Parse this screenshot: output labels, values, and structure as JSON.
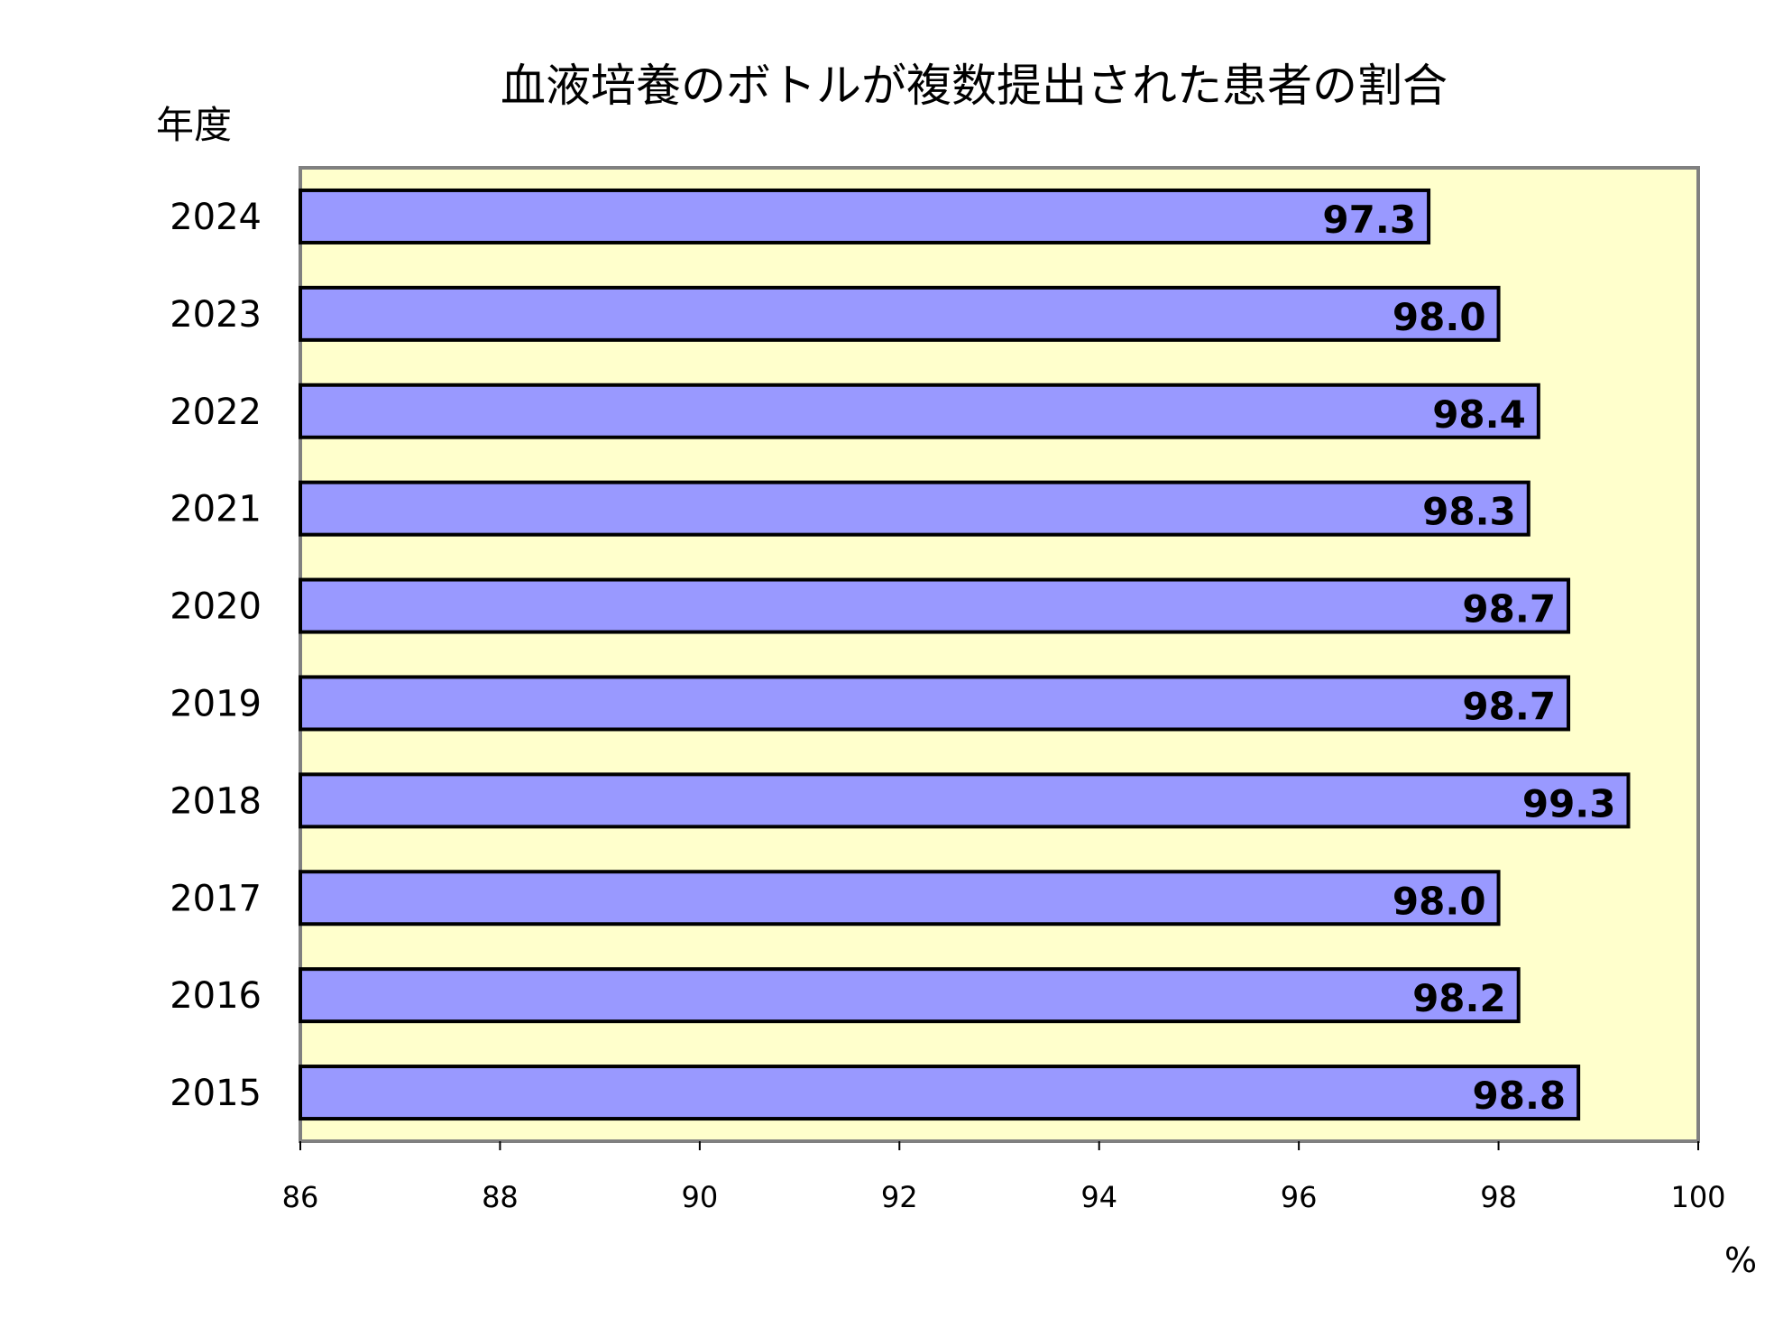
{
  "chart_data": {
    "type": "bar",
    "orientation": "horizontal",
    "title": "血液培養のボトルが複数提出された患者の割合",
    "ylabel": "年度",
    "xlabel": "%",
    "categories": [
      "2024",
      "2023",
      "2022",
      "2021",
      "2020",
      "2019",
      "2018",
      "2017",
      "2016",
      "2015"
    ],
    "values": [
      97.3,
      98.0,
      98.4,
      98.3,
      98.7,
      98.7,
      99.3,
      98.0,
      98.2,
      98.8
    ],
    "data_labels": [
      "97.3",
      "98.0",
      "98.4",
      "98.3",
      "98.7",
      "98.7",
      "99.3",
      "98.0",
      "98.2",
      "98.8"
    ],
    "xlim": [
      86,
      100
    ],
    "xticks": [
      86,
      88,
      90,
      92,
      94,
      96,
      98,
      100
    ],
    "xtick_labels": [
      "86",
      "88",
      "90",
      "92",
      "94",
      "96",
      "98",
      "100"
    ],
    "grid": false,
    "legend": "none",
    "colors": {
      "bar": "#9999FF",
      "plot_background": "#FFFFCC",
      "bar_edge": "#000000"
    }
  }
}
